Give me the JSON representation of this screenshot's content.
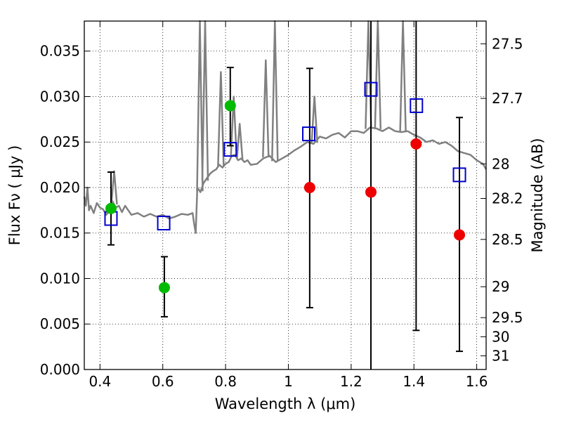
{
  "chart_data": {
    "type": "scatter",
    "xlabel": "Wavelength  λ (μm)",
    "ylabel": "Flux  Fν  ( μJy )",
    "y2label": "Magnitude (AB)",
    "xlim": [
      0.35,
      1.63
    ],
    "ylim": [
      0.0,
      0.0383
    ],
    "x_ticks": [
      0.4,
      0.6,
      0.8,
      1.0,
      1.2,
      1.4,
      1.6
    ],
    "x_tick_labels": [
      "0.4",
      "0.6",
      "0.8",
      "1",
      "1.2",
      "1.4",
      "1.6"
    ],
    "y_ticks": [
      0.0,
      0.005,
      0.01,
      0.015,
      0.02,
      0.025,
      0.03,
      0.035
    ],
    "y_tick_labels": [
      "0.000",
      "0.005",
      "0.010",
      "0.015",
      "0.020",
      "0.025",
      "0.030",
      "0.035"
    ],
    "y2_ticks": [
      {
        "label": "27.5",
        "flux": 0.0358
      },
      {
        "label": "27.7",
        "flux": 0.0298
      },
      {
        "label": "28",
        "flux": 0.0226
      },
      {
        "label": "28.2",
        "flux": 0.0188
      },
      {
        "label": "28.5",
        "flux": 0.0143
      },
      {
        "label": "29",
        "flux": 0.0091
      },
      {
        "label": "29.5",
        "flux": 0.0057
      },
      {
        "label": "30",
        "flux": 0.0036
      },
      {
        "label": "31",
        "flux": 0.0015
      }
    ],
    "grid": true,
    "colors": {
      "spectrum": "#808080",
      "model": "#0000cc",
      "green": "#00bb00",
      "red": "#ee0000",
      "errorbar": "#000000"
    },
    "spectrum": {
      "x": [
        0.35,
        0.355,
        0.36,
        0.365,
        0.37,
        0.38,
        0.39,
        0.4,
        0.41,
        0.42,
        0.43,
        0.44,
        0.45,
        0.46,
        0.47,
        0.48,
        0.5,
        0.52,
        0.54,
        0.56,
        0.58,
        0.6,
        0.62,
        0.64,
        0.66,
        0.68,
        0.695,
        0.7,
        0.705,
        0.71,
        0.72,
        0.73,
        0.74,
        0.75,
        0.76,
        0.77,
        0.78,
        0.79,
        0.8,
        0.81,
        0.82,
        0.83,
        0.84,
        0.85,
        0.86,
        0.87,
        0.88,
        0.9,
        0.92,
        0.94,
        0.96,
        0.98,
        1.0,
        1.02,
        1.04,
        1.06,
        1.08,
        1.1,
        1.12,
        1.14,
        1.16,
        1.18,
        1.2,
        1.22,
        1.24,
        1.26,
        1.28,
        1.3,
        1.32,
        1.34,
        1.36,
        1.38,
        1.4,
        1.42,
        1.44,
        1.46,
        1.48,
        1.5,
        1.52,
        1.54,
        1.56,
        1.58,
        1.6,
        1.62,
        1.63
      ],
      "y": [
        0.019,
        0.018,
        0.02,
        0.0175,
        0.018,
        0.0172,
        0.0183,
        0.0178,
        0.0176,
        0.017,
        0.0175,
        0.0185,
        0.0178,
        0.018,
        0.0173,
        0.018,
        0.017,
        0.0172,
        0.0168,
        0.0171,
        0.0168,
        0.017,
        0.0166,
        0.0168,
        0.0171,
        0.017,
        0.0172,
        0.016,
        0.015,
        0.02,
        0.0195,
        0.0205,
        0.021,
        0.0215,
        0.0218,
        0.022,
        0.0225,
        0.0222,
        0.0226,
        0.0228,
        0.0235,
        0.0236,
        0.023,
        0.0232,
        0.0228,
        0.023,
        0.0225,
        0.0226,
        0.0232,
        0.0235,
        0.0228,
        0.0232,
        0.0236,
        0.0241,
        0.0245,
        0.025,
        0.0248,
        0.0256,
        0.0254,
        0.0258,
        0.026,
        0.0255,
        0.0262,
        0.0262,
        0.026,
        0.0266,
        0.0265,
        0.0262,
        0.0266,
        0.0262,
        0.0261,
        0.0262,
        0.0258,
        0.0255,
        0.025,
        0.0252,
        0.0248,
        0.025,
        0.0246,
        0.024,
        0.0238,
        0.0236,
        0.023,
        0.0226,
        0.022
      ]
    },
    "spectrum_lines": [
      {
        "x": 0.445,
        "peak": 0.0218
      },
      {
        "x": 0.718,
        "peak": 0.0383
      },
      {
        "x": 0.735,
        "peak": 0.0383
      },
      {
        "x": 0.785,
        "peak": 0.0327
      },
      {
        "x": 0.826,
        "peak": 0.03
      },
      {
        "x": 0.845,
        "peak": 0.027
      },
      {
        "x": 0.928,
        "peak": 0.034
      },
      {
        "x": 0.957,
        "peak": 0.0383
      },
      {
        "x": 1.083,
        "peak": 0.03
      },
      {
        "x": 1.255,
        "peak": 0.0383
      },
      {
        "x": 1.285,
        "peak": 0.0383
      },
      {
        "x": 1.365,
        "peak": 0.0383
      }
    ],
    "model_points": {
      "x": [
        0.435,
        0.603,
        0.815,
        1.065,
        1.263,
        1.408,
        1.545
      ],
      "y": [
        0.0166,
        0.0161,
        0.0242,
        0.0259,
        0.0308,
        0.029,
        0.0214
      ]
    },
    "observed_green": {
      "x": [
        0.435,
        0.605,
        0.815
      ],
      "y": [
        0.0177,
        0.009,
        0.029
      ],
      "err_low": [
        0.0137,
        0.0058,
        0.0246
      ],
      "err_high": [
        0.0217,
        0.0124,
        0.0332
      ]
    },
    "observed_red": {
      "x": [
        1.068,
        1.263,
        1.407,
        1.545
      ],
      "y": [
        0.02,
        0.0195,
        0.0248,
        0.0148
      ],
      "err_low": [
        0.0068,
        0.0,
        0.0043,
        0.002
      ],
      "err_high": [
        0.0331,
        0.0383,
        0.0383,
        0.0277
      ]
    }
  }
}
